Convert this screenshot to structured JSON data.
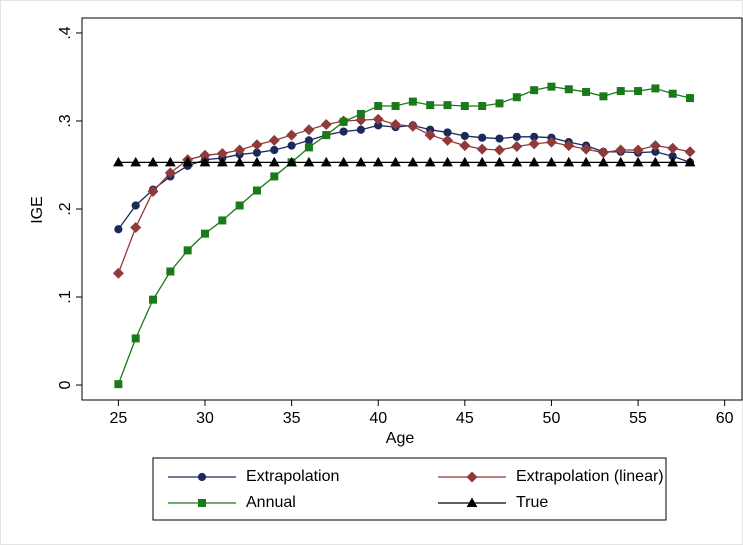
{
  "chart_data": {
    "type": "line",
    "x_label": "Age",
    "y_label": "IGE",
    "x": [
      25,
      26,
      27,
      28,
      29,
      30,
      31,
      32,
      33,
      34,
      35,
      36,
      37,
      38,
      39,
      40,
      41,
      42,
      43,
      44,
      45,
      46,
      47,
      48,
      49,
      50,
      51,
      52,
      53,
      54,
      55,
      56,
      57,
      58
    ],
    "xlim": [
      22.9,
      61.0
    ],
    "xticks": [
      25,
      30,
      35,
      40,
      45,
      50,
      55,
      60
    ],
    "ylim": [
      -0.017,
      0.417
    ],
    "yticks": [
      0,
      {
        "value": 0.1,
        "label": ".1"
      },
      {
        "value": 0.2,
        "label": ".2"
      },
      {
        "value": 0.3,
        "label": ".3"
      },
      {
        "value": 0.4,
        "label": ".4"
      }
    ],
    "grid": false,
    "legend_position": "bottom",
    "series": [
      {
        "name": "Extrapolation",
        "color": "#1a2a5a",
        "marker": "circle",
        "values": [
          0.177,
          0.204,
          0.222,
          0.237,
          0.249,
          0.256,
          0.258,
          0.262,
          0.264,
          0.267,
          0.272,
          0.278,
          0.284,
          0.288,
          0.29,
          0.295,
          0.293,
          0.295,
          0.29,
          0.287,
          0.283,
          0.281,
          0.28,
          0.282,
          0.282,
          0.281,
          0.276,
          0.272,
          0.265,
          0.265,
          0.264,
          0.265,
          0.26,
          0.253
        ]
      },
      {
        "name": "Extrapolation (linear)",
        "color": "#903b3b",
        "marker": "diamond",
        "values": [
          0.127,
          0.179,
          0.22,
          0.241,
          0.256,
          0.261,
          0.263,
          0.267,
          0.273,
          0.278,
          0.284,
          0.29,
          0.296,
          0.3,
          0.301,
          0.302,
          0.296,
          0.294,
          0.284,
          0.278,
          0.272,
          0.268,
          0.267,
          0.271,
          0.274,
          0.276,
          0.272,
          0.268,
          0.264,
          0.267,
          0.267,
          0.272,
          0.269,
          0.265
        ]
      },
      {
        "name": "Annual",
        "color": "#1a7a1a",
        "marker": "square",
        "values": [
          0.001,
          0.053,
          0.097,
          0.129,
          0.153,
          0.172,
          0.187,
          0.204,
          0.221,
          0.237,
          0.253,
          0.27,
          0.284,
          0.299,
          0.308,
          0.317,
          0.317,
          0.322,
          0.318,
          0.318,
          0.317,
          0.317,
          0.32,
          0.327,
          0.335,
          0.339,
          0.336,
          0.333,
          0.328,
          0.334,
          0.334,
          0.337,
          0.331,
          0.326
        ]
      },
      {
        "name": "True",
        "color": "#000000",
        "marker": "triangle",
        "values": [
          0.253,
          0.253,
          0.253,
          0.253,
          0.253,
          0.253,
          0.253,
          0.253,
          0.253,
          0.253,
          0.253,
          0.253,
          0.253,
          0.253,
          0.253,
          0.253,
          0.253,
          0.253,
          0.253,
          0.253,
          0.253,
          0.253,
          0.253,
          0.253,
          0.253,
          0.253,
          0.253,
          0.253,
          0.253,
          0.253,
          0.253,
          0.253,
          0.253,
          0.253
        ]
      }
    ]
  }
}
